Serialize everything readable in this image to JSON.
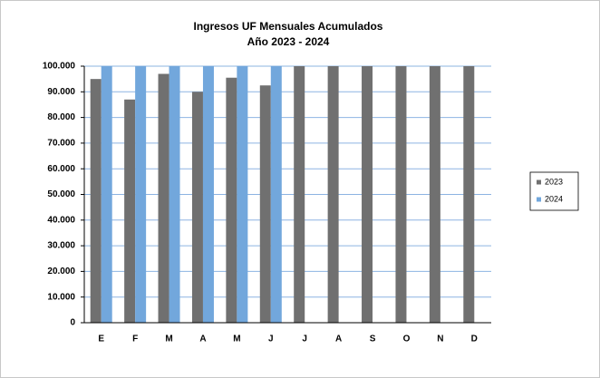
{
  "chart_data": {
    "type": "bar",
    "title": "Ingresos UF Mensuales Acumulados",
    "subtitle": "Año 2023 - 2024",
    "categories": [
      "E",
      "F",
      "M",
      "A",
      "M",
      "J",
      "J",
      "A",
      "S",
      "O",
      "N",
      "D"
    ],
    "series": [
      {
        "name": "2023",
        "color": "#707070",
        "values": [
          95000,
          87000,
          97000,
          90000,
          95500,
          92500,
          100000,
          100000,
          100000,
          100000,
          100000,
          100000
        ]
      },
      {
        "name": "2024",
        "color": "#72a7dc",
        "values": [
          100000,
          100000,
          100000,
          100000,
          100000,
          100000,
          null,
          null,
          null,
          null,
          null,
          null
        ]
      }
    ],
    "ylim": [
      0,
      100000
    ],
    "yticks": [
      0,
      {
        "value": 10000,
        "label": "10.000"
      },
      {
        "value": 20000,
        "label": "20.000"
      },
      {
        "value": 30000,
        "label": "30.000"
      },
      {
        "value": 40000,
        "label": "40.000"
      },
      {
        "value": 50000,
        "label": "50.000"
      },
      {
        "value": 60000,
        "label": "60.000"
      },
      {
        "value": 70000,
        "label": "70.000"
      },
      {
        "value": 80000,
        "label": "80.000"
      },
      {
        "value": 90000,
        "label": "90.000"
      },
      {
        "value": 100000,
        "label": "100.000"
      }
    ],
    "grid": true,
    "legend": "right"
  }
}
